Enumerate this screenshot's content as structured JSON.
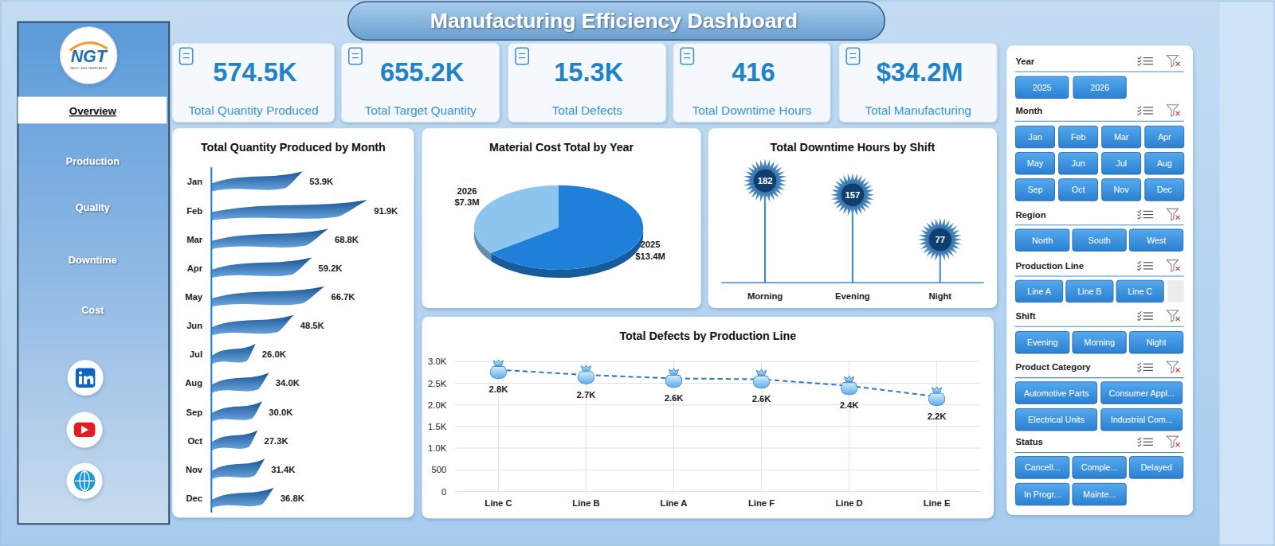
{
  "header": {
    "title": "Manufacturing Efficiency Dashboard"
  },
  "logo": {
    "text": "NGT",
    "subtitle": "NEXT GEN TEMPLATES"
  },
  "nav": {
    "items": [
      {
        "label": "Overview",
        "selected": true
      },
      {
        "label": "Production",
        "selected": false
      },
      {
        "label": "Quality",
        "selected": false
      },
      {
        "label": "Downtime",
        "selected": false
      },
      {
        "label": "Cost",
        "selected": false
      }
    ]
  },
  "kpis": [
    {
      "value": "574.5K",
      "label": "Total Quantity Produced"
    },
    {
      "value": "655.2K",
      "label": "Total Target Quantity"
    },
    {
      "value": "15.3K",
      "label": "Total Defects"
    },
    {
      "value": "416",
      "label": "Total Downtime Hours"
    },
    {
      "value": "$34.2M",
      "label": "Total Manufacturing"
    }
  ],
  "chart_data": [
    {
      "type": "bar",
      "title": "Total Quantity Produced by Month",
      "orientation": "horizontal",
      "categories": [
        "Jan",
        "Feb",
        "Mar",
        "Apr",
        "May",
        "Jun",
        "Jul",
        "Aug",
        "Sep",
        "Oct",
        "Nov",
        "Dec"
      ],
      "values": [
        53900,
        91900,
        68800,
        59200,
        66700,
        48500,
        26000,
        34000,
        30000,
        27300,
        31400,
        36800
      ],
      "value_labels": [
        "53.9K",
        "91.9K",
        "68.8K",
        "59.2K",
        "66.7K",
        "48.5K",
        "26.0K",
        "34.0K",
        "30.0K",
        "27.3K",
        "31.4K",
        "36.8K"
      ],
      "xlim": [
        0,
        115000
      ],
      "tick_labels": "y",
      "data_labels": true,
      "color": "#1f78d1"
    },
    {
      "type": "pie",
      "title": "Material Cost Total by Year",
      "categories": [
        "2025",
        "2026"
      ],
      "values": [
        13400000,
        7300000
      ],
      "value_labels": [
        "$13.4M",
        "$7.3M"
      ],
      "colors": [
        "#1e80d8",
        "#8ec5ef"
      ],
      "data_labels": true
    },
    {
      "type": "lollipop",
      "title": "Total Downtime Hours by Shift",
      "categories": [
        "Morning",
        "Evening",
        "Night"
      ],
      "values": [
        182,
        157,
        77
      ],
      "ylim": [
        0,
        200
      ],
      "tick_labels": "x",
      "data_labels": true,
      "marker": "starburst",
      "color": "#1a73c9"
    },
    {
      "type": "line",
      "title": "Total Defects by Production Line",
      "categories": [
        "Line C",
        "Line B",
        "Line A",
        "Line F",
        "Line D",
        "Line E"
      ],
      "values": [
        2810,
        2690,
        2610,
        2590,
        2440,
        2190
      ],
      "value_labels": [
        "2.8K",
        "2.7K",
        "2.6K",
        "2.6K",
        "2.4K",
        "2.2K"
      ],
      "ylim": [
        0,
        3000
      ],
      "yticks": [
        0,
        500,
        {
          "value": 1000,
          "label": "1.0K"
        },
        {
          "value": 1500,
          "label": "1.5K"
        },
        {
          "value": 2000,
          "label": "2.0K"
        },
        {
          "value": 2500,
          "label": "2.5K"
        },
        {
          "value": 3000,
          "label": "3.0K"
        }
      ],
      "grid": true,
      "marker": "money_bag",
      "line_style": "dashed",
      "data_labels": true,
      "color": "#2b7cc7"
    }
  ],
  "slicers": [
    {
      "title": "Year",
      "options": [
        "2025",
        "2026"
      ]
    },
    {
      "title": "Month",
      "options": [
        "Jan",
        "Feb",
        "Mar",
        "Apr",
        "May",
        "Jun",
        "Jul",
        "Aug",
        "Sep",
        "Oct",
        "Nov",
        "Dec"
      ]
    },
    {
      "title": "Region",
      "options": [
        "North",
        "South",
        "West"
      ]
    },
    {
      "title": "Production Line",
      "options": [
        "Line A",
        "Line B",
        "Line C"
      ]
    },
    {
      "title": "Shift",
      "options": [
        "Evening",
        "Morning",
        "Night"
      ]
    },
    {
      "title": "Product Category",
      "options": [
        "Automotive Parts",
        "Consumer Appl...",
        "Electrical Units",
        "Industrial Com..."
      ]
    },
    {
      "title": "Status",
      "options": [
        "Cancell...",
        "Comple...",
        "Delayed",
        "In Progr...",
        "Mainte..."
      ]
    }
  ]
}
